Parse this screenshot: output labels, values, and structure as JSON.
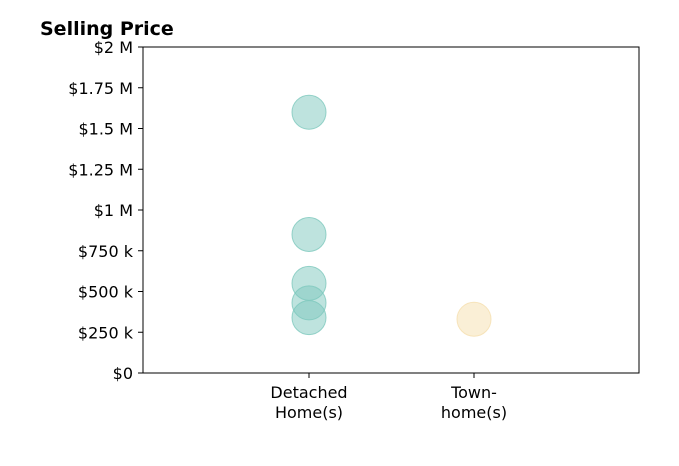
{
  "chart_data": {
    "type": "scatter",
    "ylabel": "Selling Price",
    "categories": [
      [
        "Detached",
        "Home(s)"
      ],
      [
        "Town-",
        "home(s)"
      ]
    ],
    "ylim": [
      0,
      2000000
    ],
    "yticks": [
      {
        "value": 0,
        "label": "$0"
      },
      {
        "value": 250000,
        "label": "$250 k"
      },
      {
        "value": 500000,
        "label": "$500 k"
      },
      {
        "value": 750000,
        "label": "$750 k"
      },
      {
        "value": 1000000,
        "label": "$1 M"
      },
      {
        "value": 1250000,
        "label": "$1.25 M"
      },
      {
        "value": 1500000,
        "label": "$1.5 M"
      },
      {
        "value": 1750000,
        "label": "$1.75 M"
      },
      {
        "value": 2000000,
        "label": "$2 M"
      }
    ],
    "grid": false,
    "series": [
      {
        "category_index": 0,
        "color": "#7dc8bd",
        "values": [
          1600000,
          850000,
          550000,
          430000,
          340000
        ]
      },
      {
        "category_index": 1,
        "color": "#f5dfae",
        "values": [
          330000
        ]
      }
    ]
  }
}
